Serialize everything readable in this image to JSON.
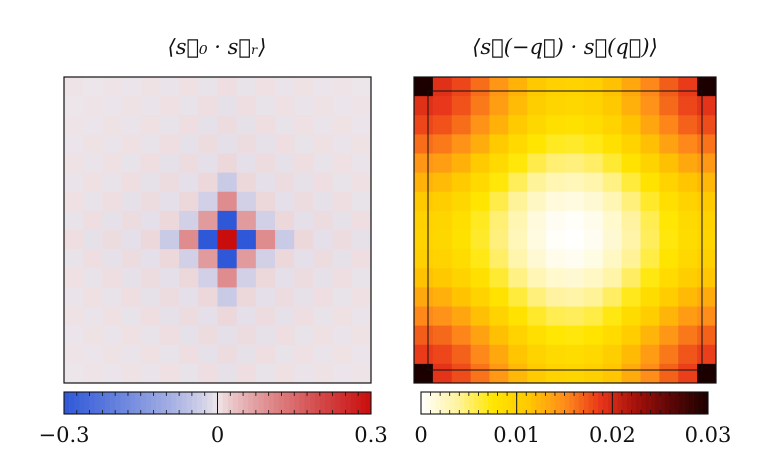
{
  "chart_data": [
    {
      "type": "heatmap",
      "title": "⟨s⃗₀ · s⃗ᵣ⟩",
      "description_grid": "real-space spin correlation on a 16x16 lattice, value at offset (dx,dy) from origin",
      "grid_size": 16,
      "center": [
        8,
        8
      ],
      "center_value": 0.3,
      "values_by_offset": [
        {
          "dx": 0,
          "dy": 0,
          "value": 0.3
        },
        {
          "dx": 1,
          "dy": 0,
          "value": -0.3
        },
        {
          "dx": -1,
          "dy": 0,
          "value": -0.3
        },
        {
          "dx": 0,
          "dy": 1,
          "value": -0.3
        },
        {
          "dx": 0,
          "dy": -1,
          "value": -0.3
        },
        {
          "dx": 1,
          "dy": 1,
          "value": 0.08
        },
        {
          "dx": 1,
          "dy": -1,
          "value": 0.08
        },
        {
          "dx": -1,
          "dy": 1,
          "value": 0.08
        },
        {
          "dx": -1,
          "dy": -1,
          "value": 0.08
        },
        {
          "dx": 2,
          "dy": 0,
          "value": 0.1
        },
        {
          "dx": -2,
          "dy": 0,
          "value": 0.1
        },
        {
          "dx": 0,
          "dy": 2,
          "value": 0.1
        },
        {
          "dx": 0,
          "dy": -2,
          "value": 0.1
        },
        {
          "dx": 3,
          "dy": 0,
          "value": -0.04
        },
        {
          "dx": -3,
          "dy": 0,
          "value": -0.04
        },
        {
          "dx": 0,
          "dy": 3,
          "value": -0.04
        },
        {
          "dx": 0,
          "dy": -3,
          "value": -0.04
        },
        {
          "dx": 2,
          "dy": 1,
          "value": -0.03
        },
        {
          "dx": 1,
          "dy": 2,
          "value": -0.03
        },
        {
          "dx": -2,
          "dy": 1,
          "value": -0.03
        },
        {
          "dx": -1,
          "dy": 2,
          "value": -0.03
        },
        {
          "dx": 2,
          "dy": -1,
          "value": -0.03
        },
        {
          "dx": 1,
          "dy": -2,
          "value": -0.03
        },
        {
          "dx": -2,
          "dy": -1,
          "value": -0.03
        },
        {
          "dx": -1,
          "dy": -2,
          "value": -0.03
        }
      ],
      "background_value": 0.0,
      "colormap": "blue-white-red",
      "colorbar": {
        "min": -0.3,
        "max": 0.3,
        "ticks": [
          -0.3,
          0,
          0.3
        ],
        "tick_labels": [
          "−0.3",
          "0",
          "0.3"
        ]
      }
    },
    {
      "type": "heatmap",
      "title": "⟨s⃗(−q⃗) · s⃗(q⃗)⟩",
      "description_grid": "spin structure factor on a 16x16 momentum grid, minimum at zone center, maximum at corners",
      "grid_size": 16,
      "center_value": 0.0,
      "corner_value": 0.03,
      "edge_midpoint_value": 0.011,
      "colormap": "white-yellow-red-black",
      "colorbar": {
        "min": 0,
        "max": 0.03,
        "ticks": [
          0,
          0.01,
          0.02,
          0.03
        ],
        "tick_labels": [
          "0",
          "0.01",
          "0.02",
          "0.03"
        ]
      },
      "inner_frame": true
    }
  ],
  "colors": {
    "neg": "#2f58d8",
    "neutral": "#efe7ea",
    "pos": "#c90d0d",
    "heat": [
      "#ffffff",
      "#fff3a0",
      "#ffe600",
      "#ffc800",
      "#ff8d1a",
      "#e8361a",
      "#a3110a",
      "#5a0606",
      "#1c0000"
    ]
  }
}
